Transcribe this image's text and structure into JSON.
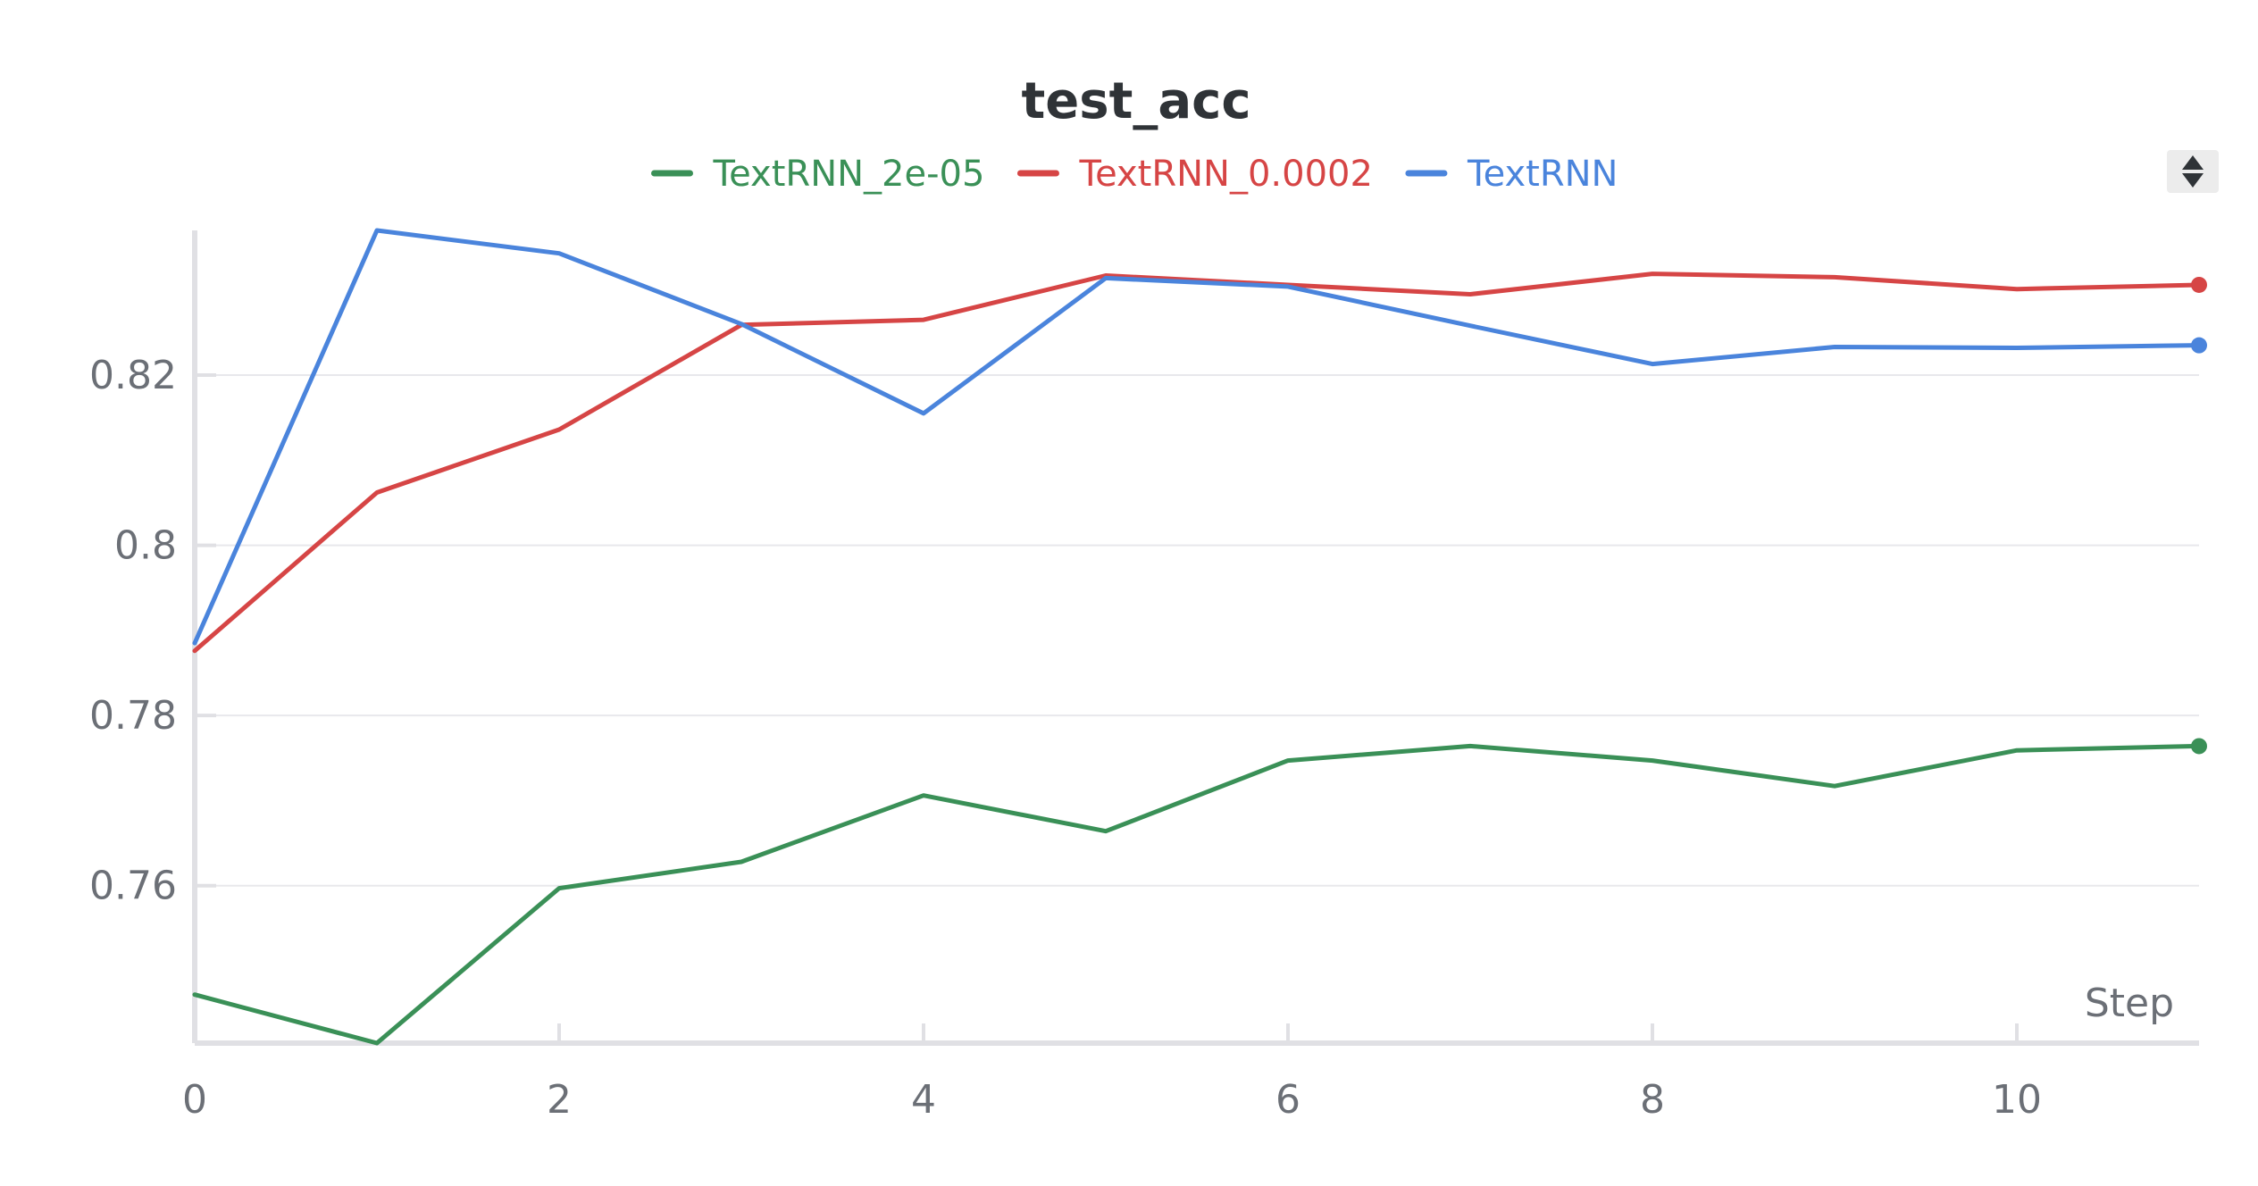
{
  "chart_data": {
    "type": "line",
    "title": "test_acc",
    "xlabel": "Step",
    "ylabel": "",
    "xlim": [
      0,
      11
    ],
    "ylim": [
      0.7415,
      0.837
    ],
    "x_ticks": [
      0,
      2,
      4,
      6,
      8,
      10
    ],
    "y_ticks": [
      0.76,
      0.78,
      0.8,
      0.82
    ],
    "y_tick_labels": [
      "0.76",
      "0.78",
      "0.8",
      "0.82"
    ],
    "grid": true,
    "legend_position": "top-center",
    "series": [
      {
        "name": "TextRNN_2e-05",
        "color": "#3a9057",
        "x": [
          0,
          1,
          2,
          3,
          4,
          5,
          6,
          7,
          8,
          9,
          10,
          11
        ],
        "values": [
          0.7472,
          0.7415,
          0.7597,
          0.7628,
          0.7706,
          0.7664,
          0.7747,
          0.7764,
          0.7747,
          0.7717,
          0.7759,
          0.7764
        ]
      },
      {
        "name": "TextRNN_0.0002",
        "color": "#d64545",
        "x": [
          0,
          1,
          2,
          3,
          4,
          5,
          6,
          7,
          8,
          9,
          10,
          11
        ],
        "values": [
          0.7876,
          0.8062,
          0.8136,
          0.8259,
          0.8265,
          0.8317,
          0.8306,
          0.8295,
          0.8319,
          0.8315,
          0.8301,
          0.8306
        ]
      },
      {
        "name": "TextRNN",
        "color": "#4a84dc",
        "x": [
          0,
          1,
          2,
          3,
          4,
          5,
          6,
          7,
          8,
          9,
          10,
          11
        ],
        "values": [
          0.7885,
          0.837,
          0.8343,
          0.826,
          0.8155,
          0.8314,
          0.8304,
          0.8258,
          0.8213,
          0.8233,
          0.8232,
          0.8235
        ]
      }
    ]
  },
  "controls": {
    "scroll_icon": "up-down-arrows-icon"
  }
}
